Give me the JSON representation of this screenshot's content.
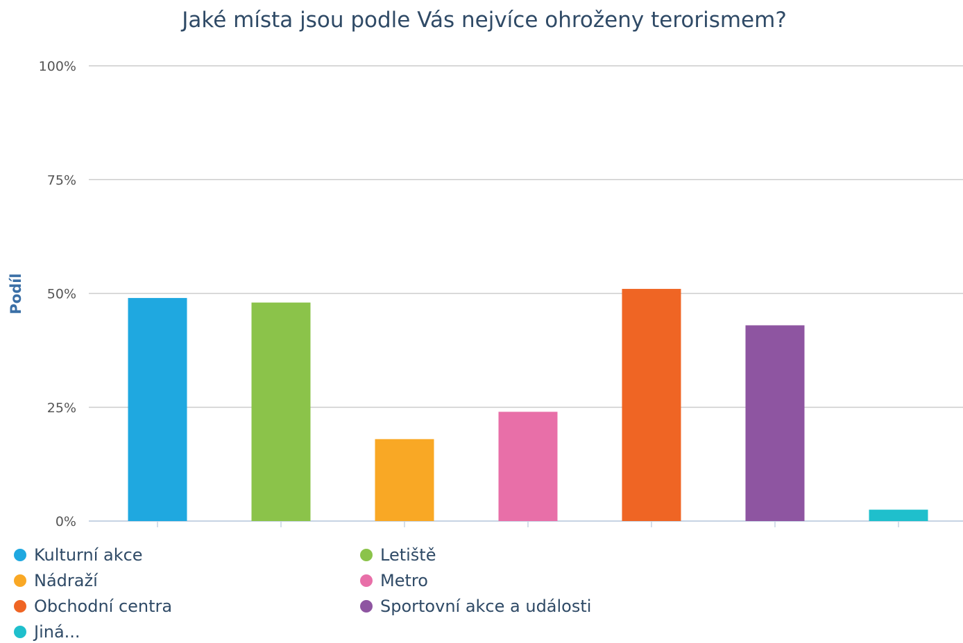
{
  "chart_data": {
    "type": "bar",
    "title": "Jaké místa jsou podle Vás nejvíce ohroženy terorismem?",
    "ylabel": "Podíl",
    "xlabel": "",
    "ylim": [
      0,
      100
    ],
    "yticks": [
      0,
      25,
      50,
      75,
      100
    ],
    "ytick_labels": [
      "0%",
      "25%",
      "50%",
      "75%",
      "100%"
    ],
    "grid": true,
    "legend_position": "bottom-left",
    "categories": [
      "Kulturní akce",
      "Letiště",
      "Nádraží",
      "Metro",
      "Obchodní centra",
      "Sportovní akce a události",
      "Jiná..."
    ],
    "values": [
      49,
      48,
      18,
      24,
      51,
      43,
      2.5
    ],
    "colors": [
      "#1fa8e0",
      "#8bc34a",
      "#f9a825",
      "#e86fa8",
      "#ef6524",
      "#8e55a1",
      "#1fbfcc"
    ]
  },
  "legend": {
    "items": [
      {
        "label": "Kulturní akce",
        "color": "#1fa8e0"
      },
      {
        "label": "Letiště",
        "color": "#8bc34a"
      },
      {
        "label": "Nádraží",
        "color": "#f9a825"
      },
      {
        "label": "Metro",
        "color": "#e86fa8"
      },
      {
        "label": "Obchodní centra",
        "color": "#ef6524"
      },
      {
        "label": "Sportovní akce a události",
        "color": "#8e55a1"
      },
      {
        "label": "Jiná...",
        "color": "#1fbfcc"
      }
    ]
  }
}
